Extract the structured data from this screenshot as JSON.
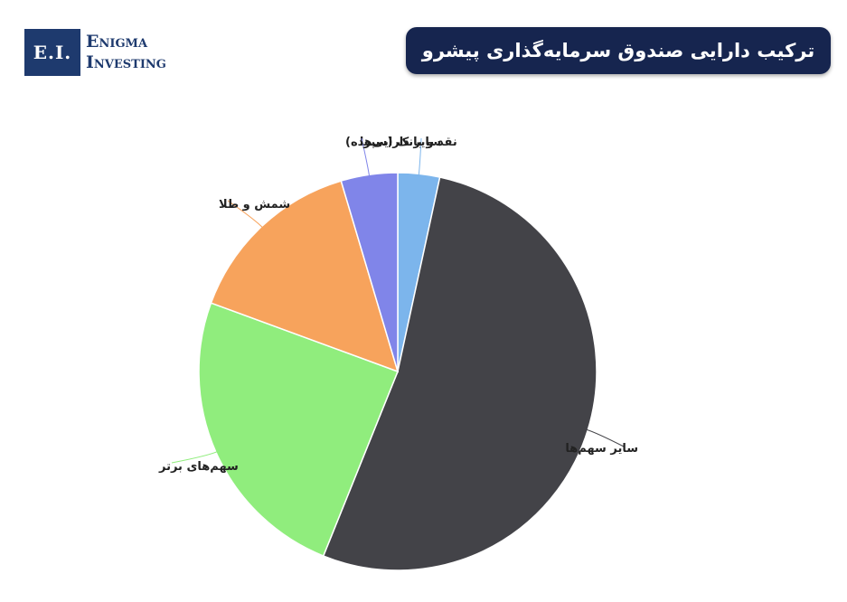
{
  "logo": {
    "badge": "E.I.",
    "line1": "Enigma",
    "line2": "Investing"
  },
  "title": "ترکیب دارایی صندوق سرمایه‌گذاری پیشرو",
  "chart_data": {
    "type": "pie",
    "title": "ترکیب دارایی صندوق سرمایه‌گذاری پیشرو",
    "start_angle_deg": 0,
    "direction": "clockwise",
    "slices": [
      {
        "label": "سایر دارایی‌ها",
        "value": 3.4,
        "color": "#7cb5ec"
      },
      {
        "label": "سایر سهم‌ها",
        "value": 52.7,
        "color": "#434348"
      },
      {
        "label": "سهم‌های برتر",
        "value": 24.5,
        "color": "#90ed7d"
      },
      {
        "label": "شمش و طلا",
        "value": 14.8,
        "color": "#f7a35c"
      },
      {
        "label": "نقد و بانک (سپرده)",
        "value": 4.6,
        "color": "#8085e9"
      }
    ]
  }
}
